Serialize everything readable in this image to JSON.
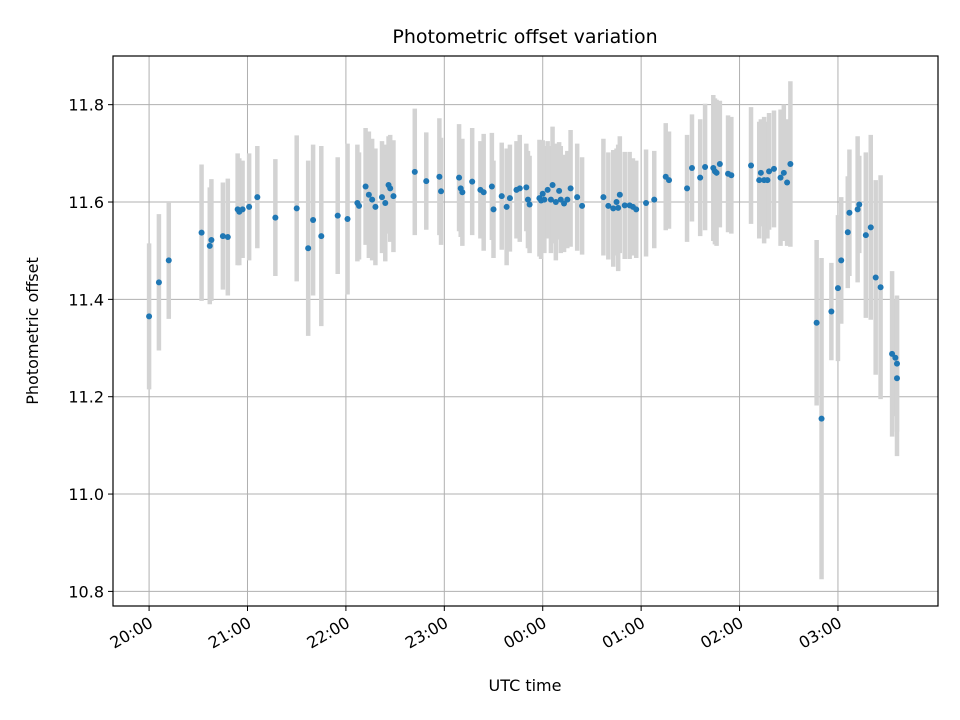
{
  "chart_data": {
    "type": "scatter",
    "title": "Photometric offset variation",
    "xlabel": "UTC time",
    "ylabel": "Photometric offset",
    "xlim": [
      "19:38",
      "04:01"
    ],
    "ylim": [
      10.77,
      11.9
    ],
    "x_ticks": [
      "20:00",
      "21:00",
      "22:00",
      "23:00",
      "00:00",
      "01:00",
      "02:00",
      "03:00"
    ],
    "y_ticks": [
      "10.8",
      "11.0",
      "11.2",
      "11.4",
      "11.6",
      "11.8"
    ],
    "grid": true,
    "colors": {
      "points": "#1f77b4",
      "error_bars": "#d3d3d3",
      "grid": "#b0b0b0"
    },
    "series": [
      {
        "points": [
          {
            "t": "20:00",
            "y": 11.365,
            "e": 0.15
          },
          {
            "t": "20:06",
            "y": 11.435,
            "e": 0.14
          },
          {
            "t": "20:12",
            "y": 11.48,
            "e": 0.12
          },
          {
            "t": "20:32",
            "y": 11.537,
            "e": 0.14
          },
          {
            "t": "20:37",
            "y": 11.51,
            "e": 0.12
          },
          {
            "t": "20:38",
            "y": 11.522,
            "e": 0.125
          },
          {
            "t": "20:45",
            "y": 11.53,
            "e": 0.11
          },
          {
            "t": "20:48",
            "y": 11.528,
            "e": 0.12
          },
          {
            "t": "20:54",
            "y": 11.585,
            "e": 0.115
          },
          {
            "t": "20:55",
            "y": 11.58,
            "e": 0.11
          },
          {
            "t": "20:57",
            "y": 11.585,
            "e": 0.1
          },
          {
            "t": "21:01",
            "y": 11.59,
            "e": 0.11
          },
          {
            "t": "21:06",
            "y": 11.61,
            "e": 0.105
          },
          {
            "t": "21:17",
            "y": 11.568,
            "e": 0.12
          },
          {
            "t": "21:30",
            "y": 11.587,
            "e": 0.15
          },
          {
            "t": "21:37",
            "y": 11.505,
            "e": 0.18
          },
          {
            "t": "21:40",
            "y": 11.563,
            "e": 0.155
          },
          {
            "t": "21:45",
            "y": 11.53,
            "e": 0.185
          },
          {
            "t": "21:55",
            "y": 11.572,
            "e": 0.12
          },
          {
            "t": "22:01",
            "y": 11.565,
            "e": 0.155
          },
          {
            "t": "22:07",
            "y": 11.598,
            "e": 0.12
          },
          {
            "t": "22:08",
            "y": 11.592,
            "e": 0.11
          },
          {
            "t": "22:12",
            "y": 11.632,
            "e": 0.12
          },
          {
            "t": "22:14",
            "y": 11.615,
            "e": 0.13
          },
          {
            "t": "22:16",
            "y": 11.605,
            "e": 0.125
          },
          {
            "t": "22:18",
            "y": 11.59,
            "e": 0.12
          },
          {
            "t": "22:22",
            "y": 11.61,
            "e": 0.115
          },
          {
            "t": "22:24",
            "y": 11.598,
            "e": 0.12
          },
          {
            "t": "22:26",
            "y": 11.635,
            "e": 0.1
          },
          {
            "t": "22:27",
            "y": 11.628,
            "e": 0.11
          },
          {
            "t": "22:29",
            "y": 11.612,
            "e": 0.115
          },
          {
            "t": "22:42",
            "y": 11.662,
            "e": 0.13
          },
          {
            "t": "22:49",
            "y": 11.643,
            "e": 0.1
          },
          {
            "t": "22:57",
            "y": 11.652,
            "e": 0.12
          },
          {
            "t": "22:58",
            "y": 11.622,
            "e": 0.11
          },
          {
            "t": "23:09",
            "y": 11.65,
            "e": 0.11
          },
          {
            "t": "23:10",
            "y": 11.628,
            "e": 0.1
          },
          {
            "t": "23:11",
            "y": 11.62,
            "e": 0.11
          },
          {
            "t": "23:17",
            "y": 11.642,
            "e": 0.11
          },
          {
            "t": "23:22",
            "y": 11.625,
            "e": 0.1
          },
          {
            "t": "23:24",
            "y": 11.62,
            "e": 0.12
          },
          {
            "t": "23:29",
            "y": 11.632,
            "e": 0.11
          },
          {
            "t": "23:30",
            "y": 11.585,
            "e": 0.1
          },
          {
            "t": "23:35",
            "y": 11.612,
            "e": 0.11
          },
          {
            "t": "23:38",
            "y": 11.59,
            "e": 0.12
          },
          {
            "t": "23:40",
            "y": 11.608,
            "e": 0.11
          },
          {
            "t": "23:44",
            "y": 11.625,
            "e": 0.1
          },
          {
            "t": "23:46",
            "y": 11.628,
            "e": 0.11
          },
          {
            "t": "23:50",
            "y": 11.63,
            "e": 0.09
          },
          {
            "t": "23:51",
            "y": 11.605,
            "e": 0.1
          },
          {
            "t": "23:52",
            "y": 11.595,
            "e": 0.1
          },
          {
            "t": "23:58",
            "y": 11.608,
            "e": 0.12
          },
          {
            "t": "23:59",
            "y": 11.603,
            "e": 0.12
          },
          {
            "t": "00:00",
            "y": 11.617,
            "e": 0.11
          },
          {
            "t": "00:01",
            "y": 11.605,
            "e": 0.11
          },
          {
            "t": "00:03",
            "y": 11.625,
            "e": 0.1
          },
          {
            "t": "00:05",
            "y": 11.605,
            "e": 0.11
          },
          {
            "t": "00:06",
            "y": 11.635,
            "e": 0.12
          },
          {
            "t": "00:08",
            "y": 11.6,
            "e": 0.12
          },
          {
            "t": "00:10",
            "y": 11.623,
            "e": 0.1
          },
          {
            "t": "00:11",
            "y": 11.605,
            "e": 0.11
          },
          {
            "t": "00:13",
            "y": 11.597,
            "e": 0.1
          },
          {
            "t": "00:15",
            "y": 11.605,
            "e": 0.1
          },
          {
            "t": "00:17",
            "y": 11.628,
            "e": 0.12
          },
          {
            "t": "00:21",
            "y": 11.61,
            "e": 0.11
          },
          {
            "t": "00:24",
            "y": 11.592,
            "e": 0.1
          },
          {
            "t": "00:37",
            "y": 11.61,
            "e": 0.12
          },
          {
            "t": "00:40",
            "y": 11.592,
            "e": 0.11
          },
          {
            "t": "00:43",
            "y": 11.587,
            "e": 0.12
          },
          {
            "t": "00:45",
            "y": 11.6,
            "e": 0.11
          },
          {
            "t": "00:46",
            "y": 11.588,
            "e": 0.13
          },
          {
            "t": "00:47",
            "y": 11.615,
            "e": 0.12
          },
          {
            "t": "00:50",
            "y": 11.593,
            "e": 0.11
          },
          {
            "t": "00:53",
            "y": 11.593,
            "e": 0.11
          },
          {
            "t": "00:55",
            "y": 11.59,
            "e": 0.1
          },
          {
            "t": "00:57",
            "y": 11.585,
            "e": 0.1
          },
          {
            "t": "01:03",
            "y": 11.598,
            "e": 0.11
          },
          {
            "t": "01:08",
            "y": 11.605,
            "e": 0.1
          },
          {
            "t": "01:15",
            "y": 11.652,
            "e": 0.11
          },
          {
            "t": "01:17",
            "y": 11.645,
            "e": 0.1
          },
          {
            "t": "01:28",
            "y": 11.628,
            "e": 0.11
          },
          {
            "t": "01:31",
            "y": 11.67,
            "e": 0.11
          },
          {
            "t": "01:36",
            "y": 11.65,
            "e": 0.12
          },
          {
            "t": "01:39",
            "y": 11.672,
            "e": 0.13
          },
          {
            "t": "01:44",
            "y": 11.67,
            "e": 0.15
          },
          {
            "t": "01:45",
            "y": 11.663,
            "e": 0.15
          },
          {
            "t": "01:46",
            "y": 11.66,
            "e": 0.15
          },
          {
            "t": "01:48",
            "y": 11.678,
            "e": 0.13
          },
          {
            "t": "01:53",
            "y": 11.658,
            "e": 0.12
          },
          {
            "t": "01:55",
            "y": 11.655,
            "e": 0.12
          },
          {
            "t": "02:07",
            "y": 11.675,
            "e": 0.12
          },
          {
            "t": "02:12",
            "y": 11.645,
            "e": 0.12
          },
          {
            "t": "02:13",
            "y": 11.66,
            "e": 0.11
          },
          {
            "t": "02:15",
            "y": 11.645,
            "e": 0.13
          },
          {
            "t": "02:17",
            "y": 11.645,
            "e": 0.12
          },
          {
            "t": "02:18",
            "y": 11.663,
            "e": 0.12
          },
          {
            "t": "02:21",
            "y": 11.668,
            "e": 0.12
          },
          {
            "t": "02:25",
            "y": 11.65,
            "e": 0.14
          },
          {
            "t": "02:27",
            "y": 11.66,
            "e": 0.14
          },
          {
            "t": "02:29",
            "y": 11.64,
            "e": 0.13
          },
          {
            "t": "02:31",
            "y": 11.678,
            "e": 0.17
          },
          {
            "t": "02:47",
            "y": 11.352,
            "e": 0.17
          },
          {
            "t": "02:50",
            "y": 11.155,
            "e": 0.33
          },
          {
            "t": "02:56",
            "y": 11.375,
            "e": 0.1
          },
          {
            "t": "03:00",
            "y": 11.423,
            "e": 0.15
          },
          {
            "t": "03:02",
            "y": 11.48,
            "e": 0.13
          },
          {
            "t": "03:06",
            "y": 11.538,
            "e": 0.115
          },
          {
            "t": "03:07",
            "y": 11.578,
            "e": 0.13
          },
          {
            "t": "03:12",
            "y": 11.585,
            "e": 0.15
          },
          {
            "t": "03:13",
            "y": 11.595,
            "e": 0.1
          },
          {
            "t": "03:17",
            "y": 11.532,
            "e": 0.17
          },
          {
            "t": "03:20",
            "y": 11.548,
            "e": 0.19
          },
          {
            "t": "03:23",
            "y": 11.445,
            "e": 0.2
          },
          {
            "t": "03:26",
            "y": 11.425,
            "e": 0.23
          },
          {
            "t": "03:33",
            "y": 11.288,
            "e": 0.17
          },
          {
            "t": "03:35",
            "y": 11.28,
            "e": 0.12
          },
          {
            "t": "03:36",
            "y": 11.268,
            "e": 0.14
          },
          {
            "t": "03:36",
            "y": 11.238,
            "e": 0.16
          }
        ]
      }
    ]
  }
}
